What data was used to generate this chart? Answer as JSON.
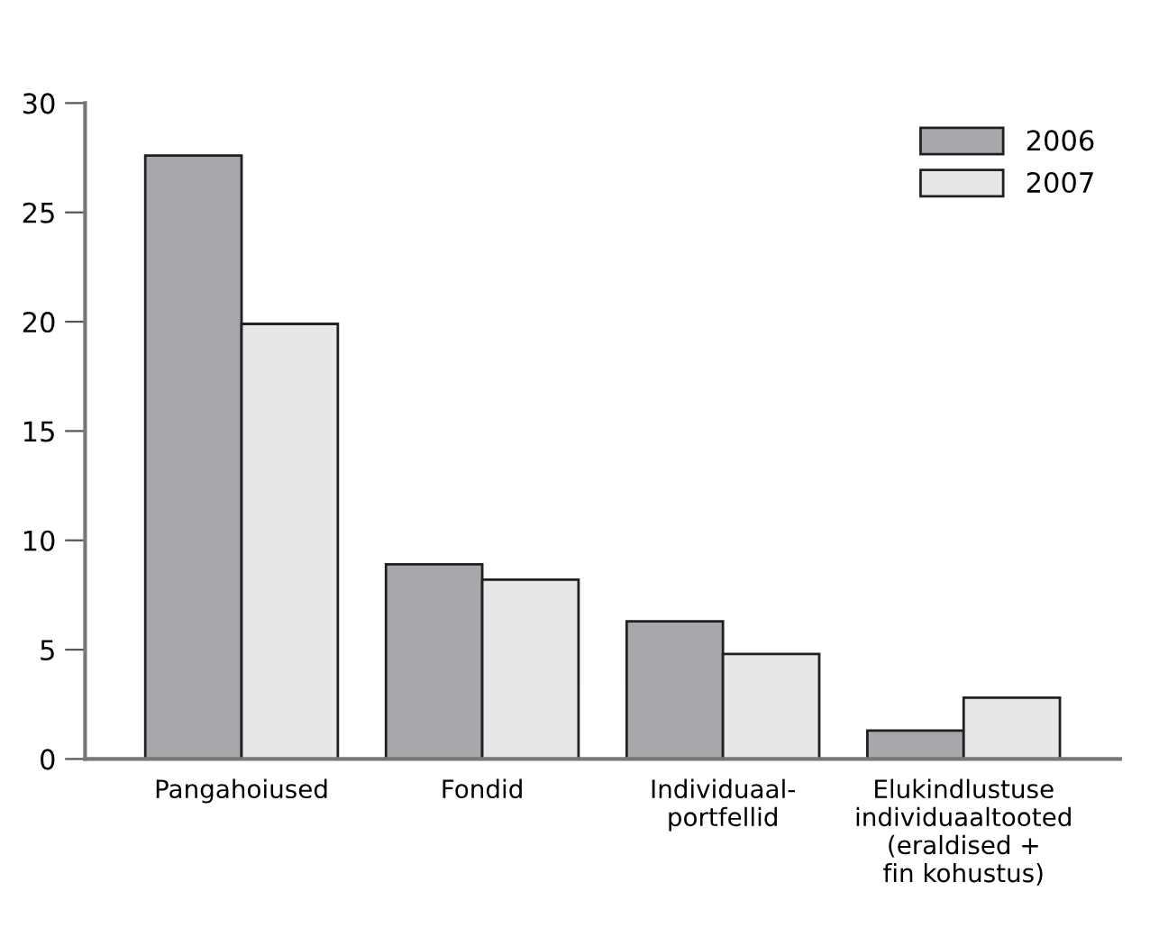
{
  "chart_data": {
    "type": "bar",
    "categories": [
      "Pangahoiused",
      "Fondid",
      "Individuaal-\nportfellid",
      "Elukindlustuse\nindividuaaltooted\n(eraldised +\nfin kohustus)"
    ],
    "series": [
      {
        "name": "2006",
        "color": "#a7a8ab",
        "values": [
          27.6,
          8.9,
          6.3,
          1.3
        ]
      },
      {
        "name": "2007",
        "color": "#e6e7e8",
        "values": [
          19.9,
          8.2,
          4.8,
          2.8
        ]
      }
    ],
    "ylim": [
      0,
      30
    ],
    "yticks": [
      0,
      5,
      10,
      15,
      20,
      25,
      30
    ],
    "grid": false,
    "legend": "top right"
  }
}
